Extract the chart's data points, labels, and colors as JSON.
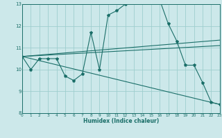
{
  "xlabel": "Humidex (Indice chaleur)",
  "xlim": [
    0,
    23
  ],
  "ylim": [
    8,
    13
  ],
  "yticks": [
    8,
    9,
    10,
    11,
    12,
    13
  ],
  "xticks": [
    0,
    1,
    2,
    3,
    4,
    5,
    6,
    7,
    8,
    9,
    10,
    11,
    12,
    13,
    14,
    15,
    16,
    17,
    18,
    19,
    20,
    21,
    22,
    23
  ],
  "bg_color": "#cce8ea",
  "line_color": "#1a6e68",
  "grid_color": "#9ecece",
  "series1_x": [
    0,
    1,
    2,
    3,
    4,
    5,
    6,
    7,
    8,
    9,
    10,
    11,
    12,
    13,
    14,
    15,
    16,
    17,
    18,
    19,
    20,
    21,
    22,
    23
  ],
  "series1_y": [
    10.6,
    10.0,
    10.5,
    10.5,
    10.5,
    9.7,
    9.5,
    9.8,
    11.7,
    10.0,
    12.5,
    12.7,
    13.0,
    13.1,
    13.1,
    13.3,
    13.2,
    12.1,
    11.3,
    10.2,
    10.2,
    9.4,
    8.5,
    8.4
  ],
  "series2_x": [
    0,
    23
  ],
  "series2_y": [
    10.6,
    11.1
  ],
  "series3_x": [
    0,
    23
  ],
  "series3_y": [
    10.6,
    8.4
  ],
  "series4_x": [
    0,
    23
  ],
  "series4_y": [
    10.6,
    11.35
  ]
}
